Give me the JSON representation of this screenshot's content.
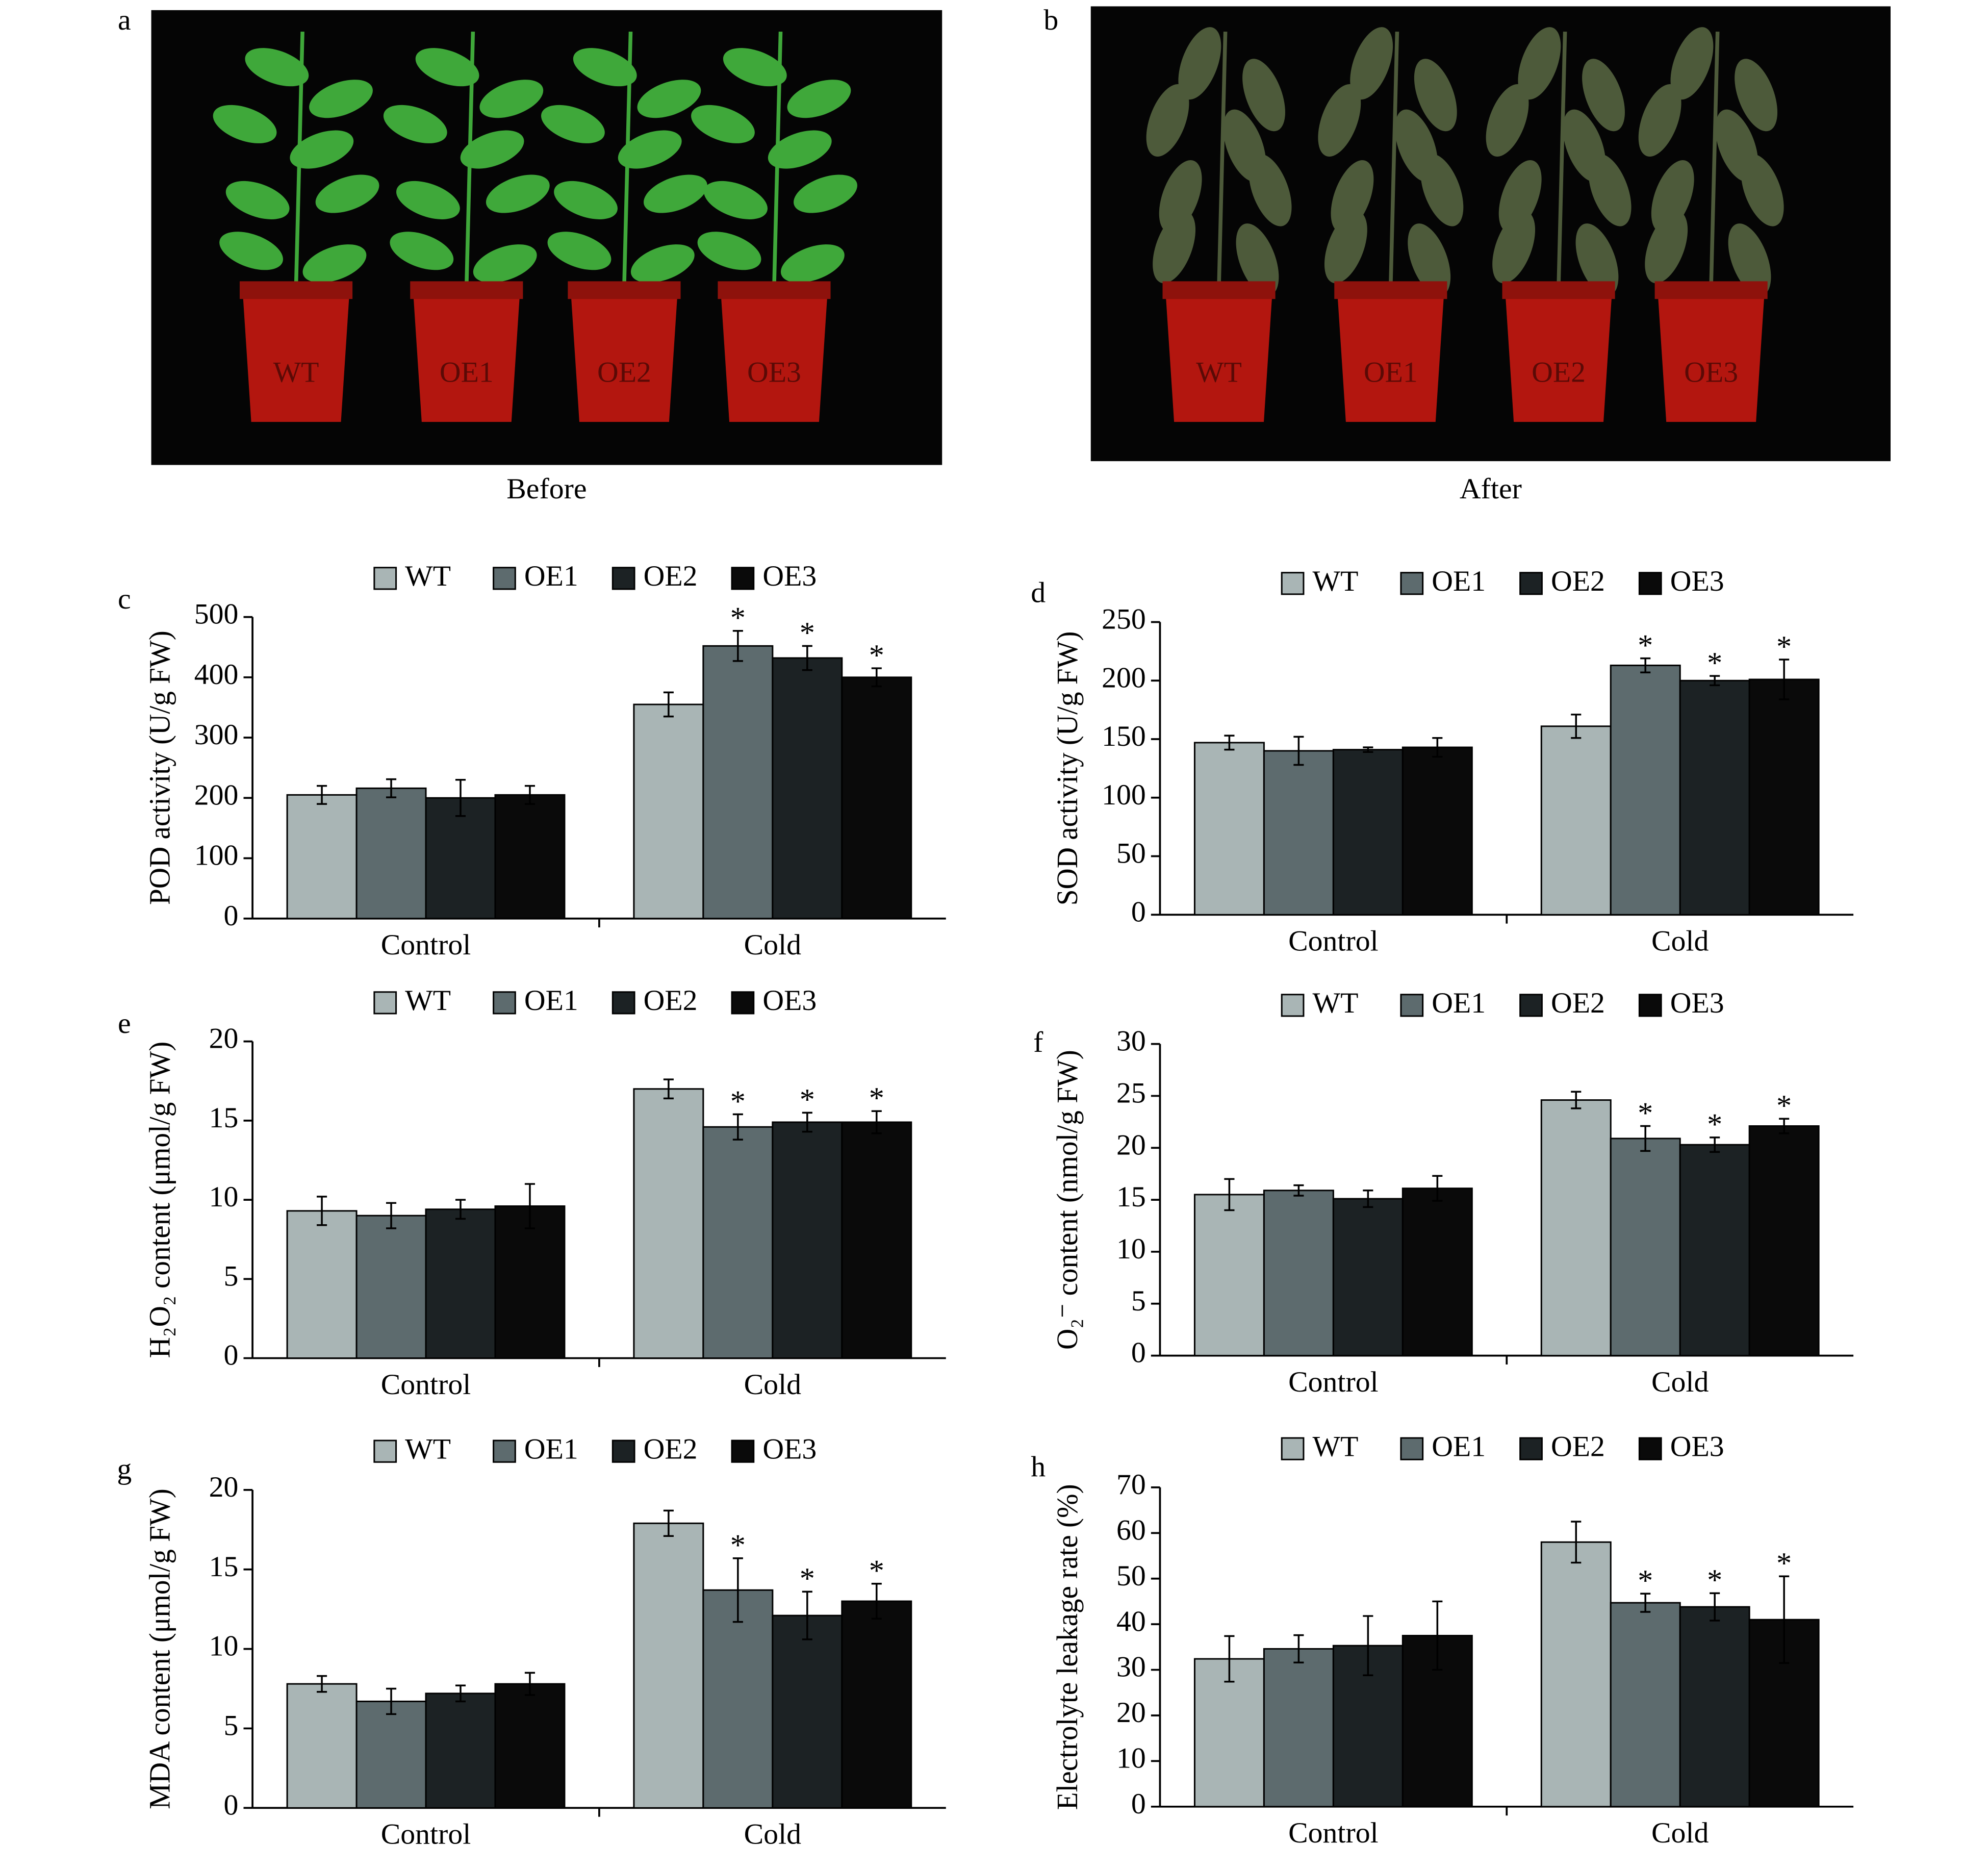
{
  "photos": [
    {
      "letter": "a",
      "caption": "Before",
      "labels": [
        "WT",
        "OE1",
        "OE2",
        "OE3"
      ]
    },
    {
      "letter": "b",
      "caption": "After",
      "labels": [
        "WT",
        "OE1",
        "OE2",
        "OE3"
      ]
    }
  ],
  "chart_data": [
    {
      "type": "bar",
      "panel": "c",
      "ylabel": "POD activity (U/g FW)",
      "categories": [
        "Control",
        "Cold"
      ],
      "ylim": [
        0,
        500
      ],
      "yticks": [
        0,
        100,
        200,
        300,
        400,
        500
      ],
      "series": [
        {
          "name": "WT",
          "color": "#a9b5b5",
          "values": [
            205,
            355
          ],
          "errors": [
            15,
            20
          ],
          "annotations": [
            null,
            null
          ]
        },
        {
          "name": "OE1",
          "color": "#5d6b6e",
          "values": [
            216,
            452
          ],
          "errors": [
            15,
            25
          ],
          "annotations": [
            null,
            "*"
          ]
        },
        {
          "name": "OE2",
          "color": "#1c2224",
          "values": [
            200,
            432
          ],
          "errors": [
            30,
            20
          ],
          "annotations": [
            null,
            "*"
          ]
        },
        {
          "name": "OE3",
          "color": "#0a0a0a",
          "values": [
            205,
            400
          ],
          "errors": [
            15,
            15
          ],
          "annotations": [
            null,
            "*"
          ]
        }
      ]
    },
    {
      "type": "bar",
      "panel": "d",
      "ylabel": "SOD activity (U/g FW)",
      "categories": [
        "Control",
        "Cold"
      ],
      "ylim": [
        0,
        250
      ],
      "yticks": [
        0,
        50,
        100,
        150,
        200,
        250
      ],
      "series": [
        {
          "name": "WT",
          "color": "#a9b5b5",
          "values": [
            147,
            161
          ],
          "errors": [
            6,
            10
          ],
          "annotations": [
            null,
            null
          ]
        },
        {
          "name": "OE1",
          "color": "#5d6b6e",
          "values": [
            140,
            213
          ],
          "errors": [
            12,
            6
          ],
          "annotations": [
            null,
            "*"
          ]
        },
        {
          "name": "OE2",
          "color": "#1c2224",
          "values": [
            141,
            200
          ],
          "errors": [
            2,
            4
          ],
          "annotations": [
            null,
            "*"
          ]
        },
        {
          "name": "OE3",
          "color": "#0a0a0a",
          "values": [
            143,
            201
          ],
          "errors": [
            8,
            17
          ],
          "annotations": [
            null,
            "*"
          ]
        }
      ]
    },
    {
      "type": "bar",
      "panel": "e",
      "ylabel": "H₂O₂ content (μmol/g FW)",
      "categories": [
        "Control",
        "Cold"
      ],
      "ylim": [
        0,
        20
      ],
      "yticks": [
        0,
        5,
        10,
        15,
        20
      ],
      "series": [
        {
          "name": "WT",
          "color": "#a9b5b5",
          "values": [
            9.3,
            17.0
          ],
          "errors": [
            0.9,
            0.6
          ],
          "annotations": [
            null,
            null
          ]
        },
        {
          "name": "OE1",
          "color": "#5d6b6e",
          "values": [
            9.0,
            14.6
          ],
          "errors": [
            0.8,
            0.8
          ],
          "annotations": [
            null,
            "*"
          ]
        },
        {
          "name": "OE2",
          "color": "#1c2224",
          "values": [
            9.4,
            14.9
          ],
          "errors": [
            0.6,
            0.6
          ],
          "annotations": [
            null,
            "*"
          ]
        },
        {
          "name": "OE3",
          "color": "#0a0a0a",
          "values": [
            9.6,
            14.9
          ],
          "errors": [
            1.4,
            0.7
          ],
          "annotations": [
            null,
            "*"
          ]
        }
      ]
    },
    {
      "type": "bar",
      "panel": "f",
      "ylabel": "O₂⁻ content (nmol/g FW)",
      "categories": [
        "Control",
        "Cold"
      ],
      "ylim": [
        0,
        30
      ],
      "yticks": [
        0,
        5,
        10,
        15,
        20,
        25,
        30
      ],
      "series": [
        {
          "name": "WT",
          "color": "#a9b5b5",
          "values": [
            15.5,
            24.6
          ],
          "errors": [
            1.5,
            0.8
          ],
          "annotations": [
            null,
            null
          ]
        },
        {
          "name": "OE1",
          "color": "#5d6b6e",
          "values": [
            15.9,
            20.9
          ],
          "errors": [
            0.5,
            1.2
          ],
          "annotations": [
            null,
            "*"
          ]
        },
        {
          "name": "OE2",
          "color": "#1c2224",
          "values": [
            15.1,
            20.3
          ],
          "errors": [
            0.8,
            0.7
          ],
          "annotations": [
            null,
            "*"
          ]
        },
        {
          "name": "OE3",
          "color": "#0a0a0a",
          "values": [
            16.1,
            22.1
          ],
          "errors": [
            1.2,
            0.7
          ],
          "annotations": [
            null,
            "*"
          ]
        }
      ]
    },
    {
      "type": "bar",
      "panel": "g",
      "ylabel": "MDA content (μmol/g FW)",
      "categories": [
        "Control",
        "Cold"
      ],
      "ylim": [
        0,
        20
      ],
      "yticks": [
        0,
        5,
        10,
        15,
        20
      ],
      "series": [
        {
          "name": "WT",
          "color": "#a9b5b5",
          "values": [
            7.8,
            17.9
          ],
          "errors": [
            0.5,
            0.8
          ],
          "annotations": [
            null,
            null
          ]
        },
        {
          "name": "OE1",
          "color": "#5d6b6e",
          "values": [
            6.7,
            13.7
          ],
          "errors": [
            0.8,
            2.0
          ],
          "annotations": [
            null,
            "*"
          ]
        },
        {
          "name": "OE2",
          "color": "#1c2224",
          "values": [
            7.2,
            12.1
          ],
          "errors": [
            0.5,
            1.5
          ],
          "annotations": [
            null,
            "*"
          ]
        },
        {
          "name": "OE3",
          "color": "#0a0a0a",
          "values": [
            7.8,
            13.0
          ],
          "errors": [
            0.7,
            1.1
          ],
          "annotations": [
            null,
            "*"
          ]
        }
      ]
    },
    {
      "type": "bar",
      "panel": "h",
      "ylabel": "Electrolyte leakage rate (%)",
      "categories": [
        "Control",
        "Cold"
      ],
      "ylim": [
        0,
        70
      ],
      "yticks": [
        0,
        10,
        20,
        30,
        40,
        50,
        60,
        70
      ],
      "series": [
        {
          "name": "WT",
          "color": "#a9b5b5",
          "values": [
            32.4,
            58.0
          ],
          "errors": [
            5,
            4.5
          ],
          "annotations": [
            null,
            null
          ]
        },
        {
          "name": "OE1",
          "color": "#5d6b6e",
          "values": [
            34.6,
            44.7
          ],
          "errors": [
            3,
            2
          ],
          "annotations": [
            null,
            "*"
          ]
        },
        {
          "name": "OE2",
          "color": "#1c2224",
          "values": [
            35.3,
            43.8
          ],
          "errors": [
            6.5,
            3
          ],
          "annotations": [
            null,
            "*"
          ]
        },
        {
          "name": "OE3",
          "color": "#0a0a0a",
          "values": [
            37.5,
            41.0
          ],
          "errors": [
            7.5,
            9.5
          ],
          "annotations": [
            null,
            "*"
          ]
        }
      ]
    }
  ]
}
